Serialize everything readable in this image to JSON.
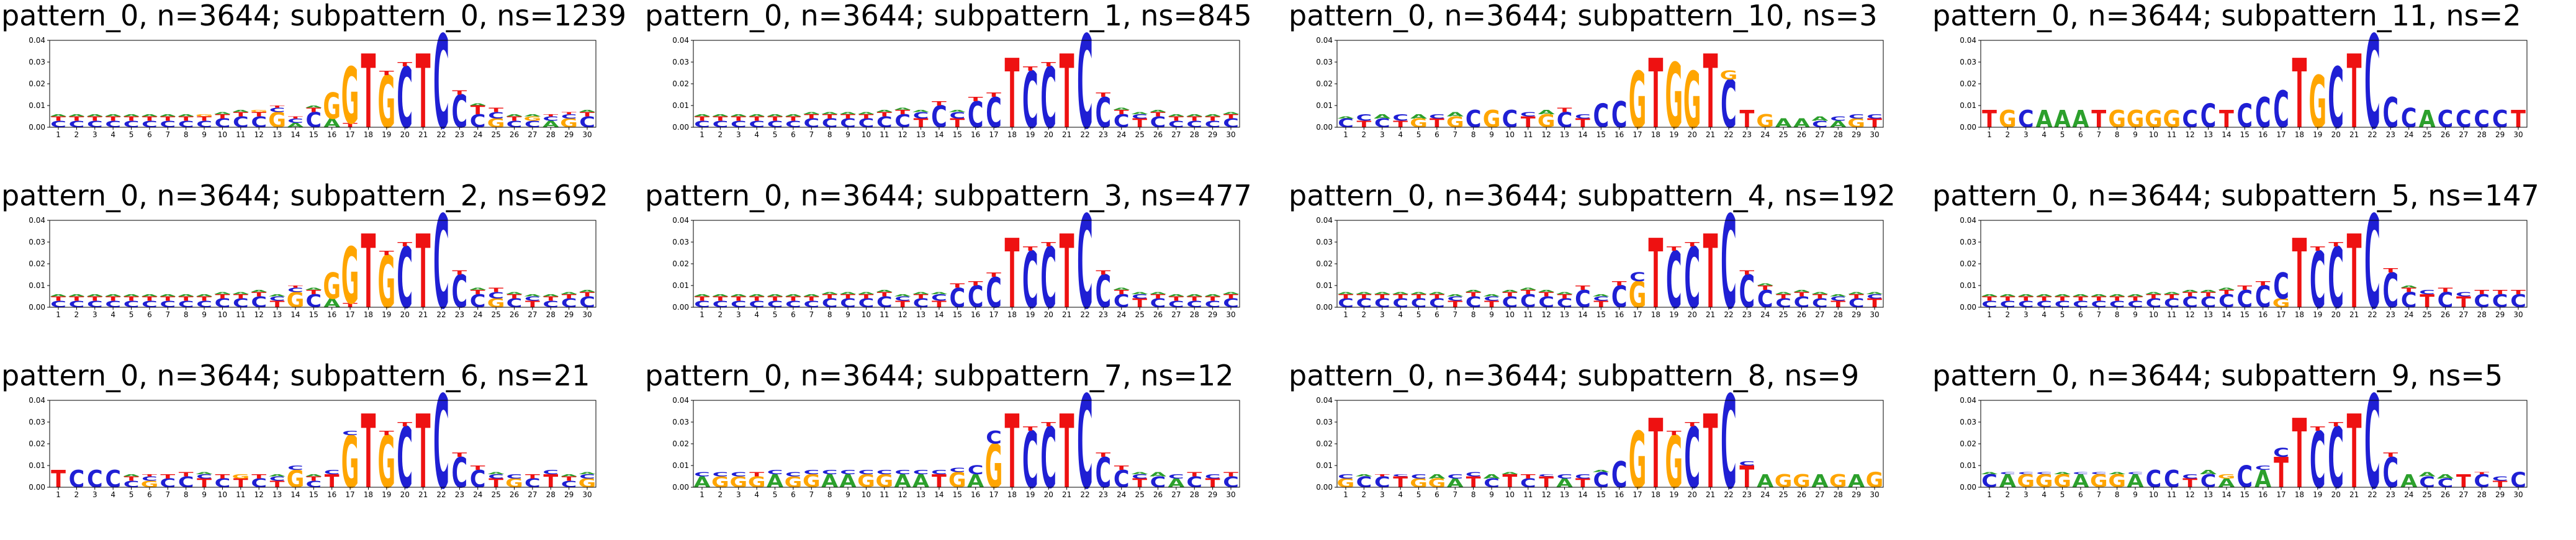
{
  "colors": {
    "A": "#2ca02c",
    "C": "#1f1fd4",
    "G": "#ffa500",
    "T": "#ee1111",
    "frame": "#000000"
  },
  "chart_data": [
    {
      "type": "sequence-logo",
      "title": "pattern_0, n=3644; subpattern_0, ns=1239",
      "ylim": [
        0,
        0.04
      ],
      "yticks": [
        "0.00",
        "0.01",
        "0.02",
        "0.03",
        "0.04"
      ],
      "positions": [
        "1",
        "2",
        "3",
        "4",
        "5",
        "6",
        "7",
        "8",
        "9",
        "10",
        "11",
        "12",
        "13",
        "14",
        "15",
        "16",
        "17",
        "18",
        "19",
        "20",
        "21",
        "22",
        "23",
        "24",
        "25",
        "26",
        "27",
        "28",
        "29",
        "30"
      ],
      "stacks": [
        "C:0.003,T:0.002,A:0.001",
        "C:0.003,T:0.002,A:0.001",
        "C:0.003,T:0.002,A:0.001",
        "C:0.003,T:0.002,A:0.001",
        "C:0.003,T:0.002,A:0.001",
        "C:0.003,T:0.002,A:0.001",
        "C:0.003,T:0.002,A:0.001",
        "C:0.003,T:0.002,A:0.001",
        "C:0.003,T:0.002,G:0.001",
        "C:0.004,T:0.002,A:0.001",
        "C:0.005,T:0.002,A:0.001",
        "C:0.005,T:0.002,G:0.001",
        "G:0.007,C:0.002,T:0.001",
        "A:0.002,C:0.002,T:0.001",
        "C:0.007,T:0.002,A:0.001",
        "A:0.004,G:0.012",
        "T:0.002,G:0.026",
        "T:0.034",
        "G:0.024,T:0.002",
        "C:0.028,T:0.002",
        "T:0.034",
        "C:0.043",
        "C:0.015,T:0.002",
        "C:0.006,T:0.004,A:0.001",
        "G:0.004,C:0.003,T:0.002",
        "C:0.003,T:0.002,A:0.001",
        "C:0.003,G:0.002,A:0.001",
        "A:0.003,C:0.002,T:0.001",
        "G:0.004,C:0.002,T:0.001",
        "C:0.005,T:0.002,A:0.001"
      ]
    },
    {
      "type": "sequence-logo",
      "title": "pattern_0, n=3644; subpattern_1, ns=845",
      "ylim": [
        0,
        0.04
      ],
      "yticks": [
        "0.00",
        "0.01",
        "0.02",
        "0.03",
        "0.04"
      ],
      "positions": [
        "1",
        "2",
        "3",
        "4",
        "5",
        "6",
        "7",
        "8",
        "9",
        "10",
        "11",
        "12",
        "13",
        "14",
        "15",
        "16",
        "17",
        "18",
        "19",
        "20",
        "21",
        "22",
        "23",
        "24",
        "25",
        "26",
        "27",
        "28",
        "29",
        "30"
      ],
      "stacks": [
        "C:0.003,T:0.002,A:0.001",
        "C:0.003,T:0.002,A:0.001",
        "C:0.003,T:0.002,A:0.001",
        "C:0.003,T:0.002,A:0.001",
        "C:0.003,T:0.002,A:0.001",
        "C:0.003,T:0.002,A:0.001",
        "C:0.004,T:0.002,A:0.001",
        "C:0.004,T:0.002,A:0.001",
        "C:0.004,T:0.002,A:0.001",
        "C:0.004,T:0.002,A:0.001",
        "C:0.005,T:0.002,A:0.001",
        "C:0.006,T:0.002,A:0.001",
        "T:0.004,C:0.003,A:0.001",
        "C:0.010,T:0.002",
        "T:0.004,C:0.003,A:0.001",
        "C:0.012,T:0.002",
        "C:0.014,T:0.002",
        "T:0.032",
        "C:0.026,T:0.002",
        "C:0.028,T:0.002",
        "T:0.034",
        "C:0.043",
        "C:0.014,T:0.002",
        "C:0.006,T:0.002,A:0.001",
        "T:0.004,C:0.002,A:0.001",
        "C:0.005,T:0.002,A:0.001",
        "C:0.003,T:0.002,A:0.001",
        "C:0.003,T:0.002,A:0.001",
        "C:0.003,T:0.002,A:0.001",
        "C:0.004,T:0.002,A:0.001"
      ]
    },
    {
      "type": "sequence-logo",
      "title": "pattern_0, n=3644; subpattern_10, ns=3",
      "ylim": [
        0,
        0.04
      ],
      "yticks": [
        "0.00",
        "0.01",
        "0.02",
        "0.03",
        "0.04"
      ],
      "positions": [
        "1",
        "2",
        "3",
        "4",
        "5",
        "6",
        "7",
        "8",
        "9",
        "10",
        "11",
        "12",
        "13",
        "14",
        "15",
        "16",
        "17",
        "18",
        "19",
        "20",
        "21",
        "22",
        "23",
        "24",
        "25",
        "26",
        "27",
        "28",
        "29",
        "30"
      ],
      "stacks": [
        "C:0.004,A:0.001",
        "T:0.003,C:0.003",
        "C:0.004,A:0.002",
        "T:0.003,C:0.003",
        "G:0.004,A:0.002",
        "T:0.004,C:0.002",
        "G:0.005,A:0.002",
        "C:0.008",
        "G:0.008",
        "C:0.008",
        "T:0.005,C:0.002",
        "G:0.006,A:0.002",
        "C:0.007,T:0.002",
        "T:0.004,C:0.002",
        "C:0.011",
        "C:0.012",
        "G:0.026",
        "T:0.032",
        "G:0.030",
        "G:0.026",
        "T:0.034",
        "C:0.022,G:0.004",
        "T:0.008",
        "G:0.006",
        "A:0.004",
        "A:0.004",
        "C:0.003,A:0.002",
        "A:0.003,C:0.002",
        "G:0.004,C:0.002",
        "T:0.004,C:0.002"
      ]
    },
    {
      "type": "sequence-logo",
      "title": "pattern_0, n=3644; subpattern_11, ns=2",
      "ylim": [
        0,
        0.04
      ],
      "yticks": [
        "0.00",
        "0.01",
        "0.02",
        "0.03",
        "0.04"
      ],
      "positions": [
        "1",
        "2",
        "3",
        "4",
        "5",
        "6",
        "7",
        "8",
        "9",
        "10",
        "11",
        "12",
        "13",
        "14",
        "15",
        "16",
        "17",
        "18",
        "19",
        "20",
        "21",
        "22",
        "23",
        "24",
        "25",
        "26",
        "27",
        "28",
        "29",
        "30"
      ],
      "stacks": [
        "T:0.008",
        "G:0.008",
        "C:0.008",
        "A:0.008",
        "A:0.008",
        "A:0.008",
        "T:0.008",
        "G:0.008",
        "G:0.008",
        "G:0.008",
        "G:0.008",
        "C:0.008",
        "C:0.011",
        "T:0.008",
        "C:0.011",
        "C:0.014",
        "C:0.017",
        "T:0.032",
        "G:0.024",
        "C:0.028",
        "T:0.034",
        "C:0.043",
        "C:0.014",
        "C:0.009",
        "A:0.008",
        "C:0.008",
        "C:0.008",
        "C:0.008",
        "C:0.008",
        "T:0.008"
      ]
    },
    {
      "type": "sequence-logo",
      "title": "pattern_0, n=3644; subpattern_2, ns=692",
      "ylim": [
        0,
        0.04
      ],
      "yticks": [
        "0.00",
        "0.01",
        "0.02",
        "0.03",
        "0.04"
      ],
      "positions": [
        "1",
        "2",
        "3",
        "4",
        "5",
        "6",
        "7",
        "8",
        "9",
        "10",
        "11",
        "12",
        "13",
        "14",
        "15",
        "16",
        "17",
        "18",
        "19",
        "20",
        "21",
        "22",
        "23",
        "24",
        "25",
        "26",
        "27",
        "28",
        "29",
        "30"
      ],
      "stacks": [
        "C:0.003,T:0.002,A:0.001",
        "C:0.003,T:0.002,A:0.001",
        "C:0.003,T:0.002,A:0.001",
        "C:0.003,T:0.002,A:0.001",
        "C:0.003,T:0.002,A:0.001",
        "C:0.003,T:0.002,A:0.001",
        "C:0.003,T:0.002,A:0.001",
        "C:0.003,T:0.002,A:0.001",
        "C:0.003,T:0.002,A:0.001",
        "C:0.004,T:0.002,A:0.001",
        "C:0.004,T:0.002,A:0.001",
        "C:0.005,T:0.002,A:0.001",
        "T:0.003,C:0.002,A:0.001",
        "G:0.007,C:0.002,T:0.001",
        "C:0.006,T:0.002,A:0.001",
        "A:0.004,G:0.012",
        "T:0.002,G:0.026",
        "T:0.034",
        "G:0.024,T:0.002",
        "C:0.028,T:0.002",
        "T:0.034",
        "C:0.043",
        "C:0.015,T:0.002",
        "C:0.006,T:0.002,A:0.001",
        "G:0.004,C:0.003,T:0.002",
        "C:0.004,T:0.002,A:0.001",
        "T:0.003,C:0.002,A:0.001",
        "C:0.003,T:0.002,A:0.001",
        "C:0.004,T:0.002,A:0.001",
        "C:0.005,T:0.002,A:0.001"
      ]
    },
    {
      "type": "sequence-logo",
      "title": "pattern_0, n=3644; subpattern_3, ns=477",
      "ylim": [
        0,
        0.04
      ],
      "yticks": [
        "0.00",
        "0.01",
        "0.02",
        "0.03",
        "0.04"
      ],
      "positions": [
        "1",
        "2",
        "3",
        "4",
        "5",
        "6",
        "7",
        "8",
        "9",
        "10",
        "11",
        "12",
        "13",
        "14",
        "15",
        "16",
        "17",
        "18",
        "19",
        "20",
        "21",
        "22",
        "23",
        "24",
        "25",
        "26",
        "27",
        "28",
        "29",
        "30"
      ],
      "stacks": [
        "C:0.003,T:0.002,A:0.001",
        "C:0.003,T:0.002,A:0.001",
        "C:0.003,T:0.002,A:0.001",
        "C:0.003,T:0.002,A:0.001",
        "C:0.003,T:0.002,A:0.001",
        "C:0.003,T:0.002,A:0.001",
        "C:0.003,T:0.002,A:0.001",
        "C:0.004,T:0.002,A:0.001",
        "C:0.004,T:0.002,A:0.001",
        "C:0.004,T:0.002,A:0.001",
        "C:0.005,T:0.002,A:0.001",
        "T:0.003,C:0.002,A:0.001",
        "C:0.004,T:0.002,A:0.001",
        "T:0.003,C:0.003,A:0.001",
        "C:0.009,T:0.002",
        "C:0.010,T:0.002",
        "C:0.014,T:0.002",
        "T:0.032",
        "C:0.026,T:0.002",
        "C:0.028,T:0.002",
        "T:0.034",
        "C:0.043",
        "C:0.015,T:0.002",
        "C:0.006,T:0.002,A:0.001",
        "T:0.004,C:0.002,A:0.001",
        "C:0.004,T:0.002,A:0.001",
        "C:0.003,T:0.002,A:0.001",
        "C:0.003,T:0.002,A:0.001",
        "C:0.003,T:0.002,A:0.001",
        "C:0.004,T:0.002,A:0.001"
      ]
    },
    {
      "type": "sequence-logo",
      "title": "pattern_0, n=3644; subpattern_4, ns=192",
      "ylim": [
        0,
        0.04
      ],
      "yticks": [
        "0.00",
        "0.01",
        "0.02",
        "0.03",
        "0.04"
      ],
      "positions": [
        "1",
        "2",
        "3",
        "4",
        "5",
        "6",
        "7",
        "8",
        "9",
        "10",
        "11",
        "12",
        "13",
        "14",
        "15",
        "16",
        "17",
        "18",
        "19",
        "20",
        "21",
        "22",
        "23",
        "24",
        "25",
        "26",
        "27",
        "28",
        "29",
        "30"
      ],
      "stacks": [
        "C:0.004,T:0.002,A:0.001",
        "C:0.004,T:0.002,A:0.001",
        "C:0.004,T:0.002,A:0.001",
        "C:0.004,T:0.002,A:0.001",
        "C:0.004,T:0.002,A:0.001",
        "C:0.004,T:0.002,A:0.001",
        "T:0.003,C:0.002,A:0.001",
        "C:0.005,T:0.002,A:0.001",
        "T:0.003,C:0.002,A:0.001",
        "C:0.005,T:0.002,A:0.001",
        "C:0.006,T:0.002,A:0.001",
        "C:0.005,T:0.002,A:0.001",
        "C:0.004,T:0.002,A:0.001",
        "C:0.008,T:0.002",
        "T:0.003,C:0.002,A:0.001",
        "C:0.010,T:0.002",
        "G:0.012,C:0.004",
        "T:0.032",
        "C:0.026,T:0.002",
        "C:0.028,T:0.002",
        "T:0.034",
        "C:0.043",
        "C:0.015,T:0.002",
        "C:0.008,T:0.002,A:0.001",
        "C:0.004,T:0.002,A:0.001",
        "C:0.005,T:0.002,A:0.001",
        "C:0.004,T:0.002,A:0.001",
        "T:0.003,C:0.002,A:0.001",
        "C:0.004,T:0.002,A:0.001",
        "T:0.004,C:0.002,A:0.001"
      ]
    },
    {
      "type": "sequence-logo",
      "title": "pattern_0, n=3644; subpattern_5, ns=147",
      "ylim": [
        0,
        0.04
      ],
      "yticks": [
        "0.00",
        "0.01",
        "0.02",
        "0.03",
        "0.04"
      ],
      "positions": [
        "1",
        "2",
        "3",
        "4",
        "5",
        "6",
        "7",
        "8",
        "9",
        "10",
        "11",
        "12",
        "13",
        "14",
        "15",
        "16",
        "17",
        "18",
        "19",
        "20",
        "21",
        "22",
        "23",
        "24",
        "25",
        "26",
        "27",
        "28",
        "29",
        "30"
      ],
      "stacks": [
        "C:0.003,T:0.002,A:0.001",
        "C:0.003,T:0.002,A:0.001",
        "C:0.003,T:0.002,A:0.001",
        "C:0.003,T:0.002,A:0.001",
        "C:0.003,T:0.002,A:0.001",
        "C:0.003,T:0.002,A:0.001",
        "C:0.003,T:0.002,A:0.001",
        "C:0.003,T:0.002,A:0.001",
        "C:0.003,T:0.002,A:0.001",
        "C:0.004,T:0.002,A:0.001",
        "C:0.004,T:0.002,A:0.001",
        "C:0.005,T:0.002,A:0.001",
        "C:0.005,T:0.002,A:0.001",
        "C:0.006,T:0.002,A:0.001",
        "C:0.008,T:0.002",
        "C:0.010,T:0.002",
        "G:0.004,C:0.012",
        "T:0.032",
        "C:0.026,T:0.002",
        "C:0.028,T:0.002",
        "T:0.034",
        "C:0.043",
        "C:0.016,T:0.002",
        "C:0.007,T:0.002,A:0.001",
        "T:0.006,C:0.002",
        "C:0.007,T:0.002",
        "T:0.005,C:0.002",
        "C:0.006,T:0.002",
        "C:0.006,T:0.002",
        "C:0.006,T:0.002"
      ]
    },
    {
      "type": "sequence-logo",
      "title": "pattern_0, n=3644; subpattern_6, ns=21",
      "ylim": [
        0,
        0.04
      ],
      "yticks": [
        "0.00",
        "0.01",
        "0.02",
        "0.03",
        "0.04"
      ],
      "positions": [
        "1",
        "2",
        "3",
        "4",
        "5",
        "6",
        "7",
        "8",
        "9",
        "10",
        "11",
        "12",
        "13",
        "14",
        "15",
        "16",
        "17",
        "18",
        "19",
        "20",
        "21",
        "22",
        "23",
        "24",
        "25",
        "26",
        "27",
        "28",
        "29",
        "30"
      ],
      "stacks": [
        "T:0.008",
        "C:0.008",
        "C:0.008",
        "C:0.008",
        "C:0.003,T:0.002,A:0.001",
        "G:0.003,C:0.002,T:0.001",
        "C:0.004,T:0.002",
        "C:0.005,T:0.002",
        "T:0.004,C:0.002,A:0.001",
        "C:0.004,T:0.002",
        "T:0.004,G:0.002",
        "C:0.004,T:0.002",
        "T:0.003,C:0.002,A:0.001",
        "G:0.008,C:0.002",
        "C:0.003,T:0.002,A:0.001",
        "T:0.006,C:0.002",
        "G:0.024,C:0.002",
        "T:0.034",
        "G:0.024,T:0.002",
        "C:0.028,T:0.002",
        "T:0.034",
        "C:0.043",
        "C:0.014,T:0.002",
        "C:0.008,T:0.002",
        "T:0.004,C:0.002,A:0.001",
        "G:0.004,C:0.002",
        "C:0.004,T:0.002",
        "T:0.006,C:0.002",
        "C:0.003,T:0.002,A:0.001",
        "G:0.004,C:0.002,A:0.001"
      ]
    },
    {
      "type": "sequence-logo",
      "title": "pattern_0, n=3644; subpattern_7, ns=12",
      "ylim": [
        0,
        0.04
      ],
      "yticks": [
        "0.00",
        "0.01",
        "0.02",
        "0.03",
        "0.04"
      ],
      "positions": [
        "1",
        "2",
        "3",
        "4",
        "5",
        "6",
        "7",
        "8",
        "9",
        "10",
        "11",
        "12",
        "13",
        "14",
        "15",
        "16",
        "17",
        "18",
        "19",
        "20",
        "21",
        "22",
        "23",
        "24",
        "25",
        "26",
        "27",
        "28",
        "29",
        "30"
      ],
      "stacks": [
        "A:0.005,C:0.002",
        "G:0.005,C:0.002",
        "G:0.005,C:0.002",
        "G:0.005,T:0.002",
        "A:0.006,C:0.002",
        "G:0.005,C:0.002",
        "G:0.006,C:0.002",
        "A:0.006,C:0.002",
        "A:0.006,C:0.002",
        "G:0.006,C:0.002",
        "G:0.006,C:0.002",
        "A:0.006,C:0.002",
        "A:0.006,C:0.002",
        "T:0.006,C:0.002",
        "G:0.007,C:0.002",
        "A:0.006,C:0.004",
        "G:0.020,C:0.006",
        "T:0.034",
        "C:0.026,T:0.002",
        "C:0.028,T:0.002",
        "T:0.034",
        "C:0.043",
        "C:0.014,T:0.002",
        "C:0.008,T:0.002",
        "T:0.004,C:0.002,A:0.001",
        "C:0.005,A:0.002",
        "A:0.004,C:0.002",
        "C:0.005,T:0.002",
        "T:0.004,C:0.002",
        "C:0.005,T:0.002"
      ]
    },
    {
      "type": "sequence-logo",
      "title": "pattern_0, n=3644; subpattern_8, ns=9",
      "ylim": [
        0,
        0.04
      ],
      "yticks": [
        "0.00",
        "0.01",
        "0.02",
        "0.03",
        "0.04"
      ],
      "positions": [
        "1",
        "2",
        "3",
        "4",
        "5",
        "6",
        "7",
        "8",
        "9",
        "10",
        "11",
        "12",
        "13",
        "14",
        "15",
        "16",
        "17",
        "18",
        "19",
        "20",
        "21",
        "22",
        "23",
        "24",
        "25",
        "26",
        "27",
        "28",
        "29",
        "30"
      ],
      "stacks": [
        "G:0.004,C:0.002",
        "C:0.005,A:0.001",
        "C:0.005,T:0.001",
        "T:0.005,C:0.001",
        "G:0.004,C:0.002",
        "G:0.004,A:0.002",
        "A:0.004,C:0.002",
        "T:0.005,C:0.002",
        "C:0.004,A:0.002",
        "T:0.006,A:0.001",
        "C:0.004,T:0.002",
        "T:0.005,C:0.001",
        "A:0.004,C:0.002",
        "T:0.004,C:0.002",
        "C:0.007,A:0.001",
        "C:0.012",
        "G:0.026",
        "T:0.032",
        "G:0.024,T:0.002",
        "C:0.028,T:0.002",
        "T:0.034",
        "C:0.043",
        "T:0.010,C:0.002",
        "A:0.006",
        "G:0.006",
        "G:0.006",
        "A:0.006",
        "G:0.006",
        "A:0.006",
        "G:0.007"
      ]
    },
    {
      "type": "sequence-logo",
      "title": "pattern_0, n=3644; subpattern_9, ns=5",
      "ylim": [
        0,
        0.04
      ],
      "yticks": [
        "0.00",
        "0.01",
        "0.02",
        "0.03",
        "0.04"
      ],
      "positions": [
        "1",
        "2",
        "3",
        "4",
        "5",
        "6",
        "7",
        "8",
        "9",
        "10",
        "11",
        "12",
        "13",
        "14",
        "15",
        "16",
        "17",
        "18",
        "19",
        "20",
        "21",
        "22",
        "23",
        "24",
        "25",
        "26",
        "27",
        "28",
        "29",
        "30"
      ],
      "stacks": [
        "C:0.006,A:0.001",
        "A:0.006,C:0.001",
        "G:0.006,C:0.001",
        "G:0.006,C:0.001",
        "G:0.006,A:0.001",
        "A:0.006,C:0.001",
        "G:0.006,C:0.001",
        "G:0.006,A:0.001",
        "A:0.006,C:0.001",
        "C:0.008",
        "C:0.008",
        "T:0.004,C:0.002",
        "C:0.006,A:0.002",
        "A:0.004,G:0.002",
        "C:0.010",
        "A:0.008,C:0.002",
        "T:0.014,C:0.004",
        "T:0.032",
        "C:0.026,T:0.002",
        "C:0.028,T:0.002",
        "T:0.034",
        "C:0.043",
        "C:0.014,T:0.002",
        "A:0.006",
        "C:0.005,A:0.002",
        "C:0.004,A:0.002",
        "T:0.006",
        "C:0.006,T:0.001",
        "T:0.003,C:0.002",
        "C:0.007"
      ]
    }
  ]
}
